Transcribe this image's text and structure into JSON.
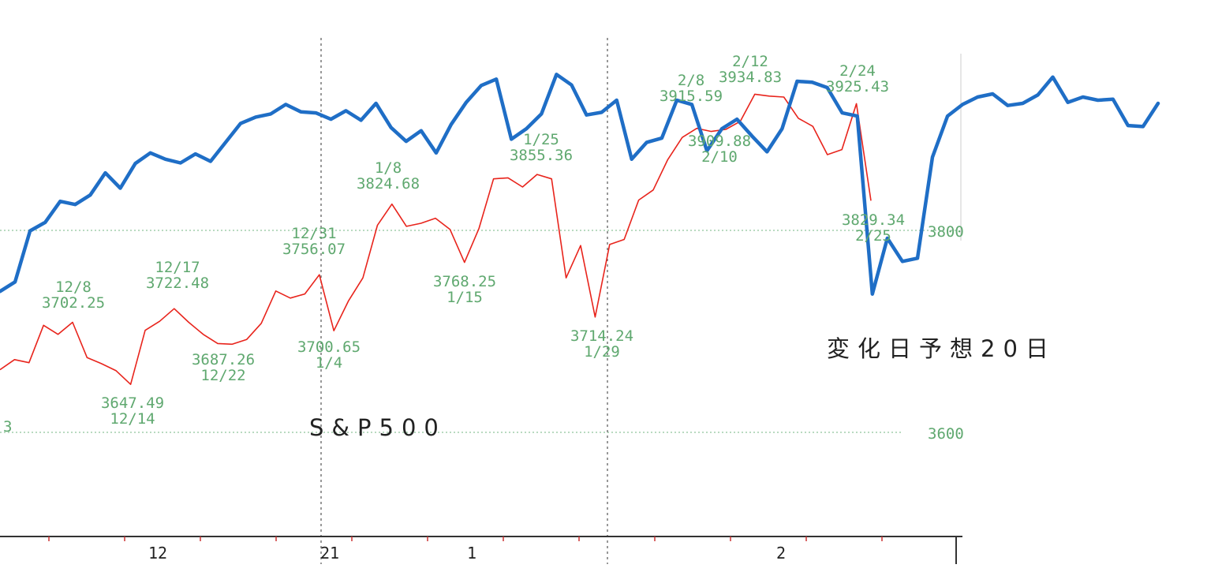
{
  "chart_data": {
    "type": "line",
    "grid": false,
    "y_reference_lines": [
      {
        "value": 3800,
        "label": "3800"
      },
      {
        "value": 3600,
        "label": "3600"
      }
    ],
    "x_tick_labels": [
      "12",
      "21",
      "1",
      "2"
    ],
    "captions": {
      "index_name": "S&P500",
      "forecast": "変化日予想20日"
    },
    "series": [
      {
        "color": "#e8241c",
        "values": [
          3662,
          3672,
          3669,
          3706,
          3697,
          3709,
          3674,
          3668,
          3661,
          3647.49,
          3701,
          3710,
          3722.48,
          3709,
          3697,
          3688,
          3687.26,
          3692,
          3708,
          3740,
          3733,
          3737,
          3756.07,
          3700.65,
          3730,
          3753,
          3805,
          3826,
          3804,
          3807,
          3812,
          3801,
          3768.25,
          3802,
          3851,
          3852,
          3843,
          3855.36,
          3851,
          3753,
          3785,
          3714.24,
          3786,
          3791,
          3830,
          3840,
          3870,
          3892,
          3901,
          3898,
          3900,
          3908,
          3934.83,
          3933,
          3932,
          3911,
          3903,
          3875,
          3880,
          3925.43,
          3829.34
        ]
      },
      {
        "color": "#1f6ec6",
        "values": [
          30105,
          30195,
          30680,
          30760,
          30960,
          30930,
          31020,
          31230,
          31085,
          31320,
          31420,
          31360,
          31325,
          31410,
          31340,
          31520,
          31700,
          31760,
          31790,
          31880,
          31810,
          31800,
          31740,
          31820,
          31730,
          31890,
          31660,
          31530,
          31630,
          31420,
          31690,
          31900,
          32060,
          32120,
          31550,
          31650,
          31790,
          32165,
          32065,
          31780,
          31805,
          31920,
          31360,
          31520,
          31560,
          31920,
          31880,
          31440,
          31650,
          31740,
          31580,
          31430,
          31650,
          32100,
          32090,
          32040,
          31800,
          31770,
          30080,
          30610,
          30390,
          30420,
          31380,
          31770,
          31880,
          31950,
          31980,
          31870,
          31890,
          31970,
          32140,
          31900,
          31950,
          31920,
          31930,
          31680,
          31670,
          31890
        ]
      }
    ],
    "annotations": [
      {
        "lines": [
          "12/8",
          "3702.25"
        ]
      },
      {
        "lines": [
          "3647.49",
          "12/14"
        ]
      },
      {
        "lines": [
          "12/17",
          "3722.48"
        ]
      },
      {
        "lines": [
          "3687.26",
          "12/22"
        ]
      },
      {
        "lines": [
          "12/31",
          "3756.07"
        ]
      },
      {
        "lines": [
          "3700.65",
          "1/4"
        ]
      },
      {
        "lines": [
          "1/8",
          "3824.68"
        ]
      },
      {
        "lines": [
          "3768.25",
          "1/15"
        ]
      },
      {
        "lines": [
          "1/25",
          "3855.36"
        ]
      },
      {
        "lines": [
          "3714.24",
          "1/29"
        ]
      },
      {
        "lines": [
          "2/8",
          "3915.59"
        ]
      },
      {
        "lines": [
          "3909.88",
          "2/10"
        ]
      },
      {
        "lines": [
          "2/12",
          "3934.83"
        ]
      },
      {
        "lines": [
          "2/24",
          "3925.43"
        ]
      },
      {
        "lines": [
          "3829.34",
          "2/25"
        ]
      },
      {
        "lines": [
          "3"
        ]
      }
    ]
  }
}
